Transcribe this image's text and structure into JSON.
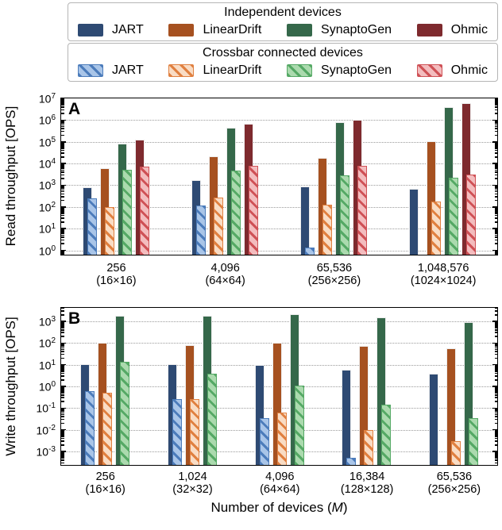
{
  "legend": {
    "groups": [
      {
        "title": "Independent devices",
        "style": "solid",
        "entries": [
          "JART",
          "LinearDrift",
          "SynaptoGen",
          "Ohmic"
        ]
      },
      {
        "title": "Crossbar connected devices",
        "style": "hatched",
        "entries": [
          "JART",
          "LinearDrift",
          "SynaptoGen",
          "Ohmic"
        ]
      }
    ]
  },
  "palette": {
    "JART": {
      "solid": "#2E4A73",
      "fill": "#A9C5E8",
      "accent": "#4C7CBB"
    },
    "LinearDrift": {
      "solid": "#A65120",
      "fill": "#F9DCC4",
      "accent": "#E08040"
    },
    "SynaptoGen": {
      "solid": "#35684A",
      "fill": "#ABDAAE",
      "accent": "#55A965"
    },
    "Ohmic": {
      "solid": "#7E2A2E",
      "fill": "#F3BCBE",
      "accent": "#CF5156"
    }
  },
  "axes": {
    "xlabel_prefix": "Number of devices (",
    "xlabel_symbol": "M",
    "xlabel_suffix": ")"
  },
  "chart_data": [
    {
      "id": "A",
      "type": "bar",
      "panel_label": "A",
      "ylabel": "Read throughput [OPS]",
      "yscale": "log",
      "grid": "dotted-horizontal",
      "ytick_exponents": [
        0,
        1,
        2,
        3,
        4,
        5,
        6,
        7
      ],
      "ylog_top": 7.0,
      "ylog_bottom": -0.2,
      "categories": [
        [
          "256",
          "(16×16)"
        ],
        [
          "4,096",
          "(64×64)"
        ],
        [
          "65,536",
          "(256×256)"
        ],
        [
          "1,048,576",
          "(1024×1024)"
        ]
      ],
      "series": [
        {
          "device": "JART",
          "variant": "independent",
          "values": [
            800,
            1700,
            850,
            700
          ]
        },
        {
          "device": "JART",
          "variant": "crossbar",
          "values": [
            250,
            120,
            1.3,
            null
          ]
        },
        {
          "device": "LinearDrift",
          "variant": "independent",
          "values": [
            6000,
            22000,
            18000,
            105000
          ]
        },
        {
          "device": "LinearDrift",
          "variant": "crossbar",
          "values": [
            100,
            280,
            130,
            180
          ]
        },
        {
          "device": "SynaptoGen",
          "variant": "independent",
          "values": [
            80000,
            450000,
            800000,
            4000000
          ]
        },
        {
          "device": "SynaptoGen",
          "variant": "crossbar",
          "values": [
            5000,
            4800,
            2800,
            2200
          ]
        },
        {
          "device": "Ohmic",
          "variant": "independent",
          "values": [
            130000,
            650000,
            1050000,
            6000000
          ]
        },
        {
          "device": "Ohmic",
          "variant": "crossbar",
          "values": [
            7000,
            8000,
            7800,
            3000
          ]
        }
      ]
    },
    {
      "id": "B",
      "type": "bar",
      "panel_label": "B",
      "ylabel": "Write throughput [OPS]",
      "yscale": "log",
      "grid": "dotted-horizontal",
      "ytick_exponents": [
        -3,
        -2,
        -1,
        0,
        1,
        2,
        3
      ],
      "ylog_top": 3.62,
      "ylog_bottom": -3.62,
      "categories": [
        [
          "256",
          "(16×16)"
        ],
        [
          "1,024",
          "(32×32)"
        ],
        [
          "4,096",
          "(64×64)"
        ],
        [
          "16,384",
          "(128×128)"
        ],
        [
          "65,536",
          "(256×256)"
        ]
      ],
      "series": [
        {
          "device": "JART",
          "variant": "independent",
          "values": [
            11,
            11,
            10,
            6,
            4
          ]
        },
        {
          "device": "JART",
          "variant": "crossbar",
          "values": [
            0.6,
            0.25,
            0.035,
            0.0005,
            null
          ]
        },
        {
          "device": "LinearDrift",
          "variant": "independent",
          "values": [
            105,
            80,
            105,
            75,
            55
          ]
        },
        {
          "device": "LinearDrift",
          "variant": "crossbar",
          "values": [
            0.5,
            0.25,
            0.06,
            0.01,
            0.003
          ]
        },
        {
          "device": "SynaptoGen",
          "variant": "independent",
          "values": [
            1800,
            1800,
            2100,
            1500,
            900
          ]
        },
        {
          "device": "SynaptoGen",
          "variant": "crossbar",
          "values": [
            14,
            4,
            1.1,
            0.14,
            0.035
          ]
        }
      ]
    }
  ]
}
